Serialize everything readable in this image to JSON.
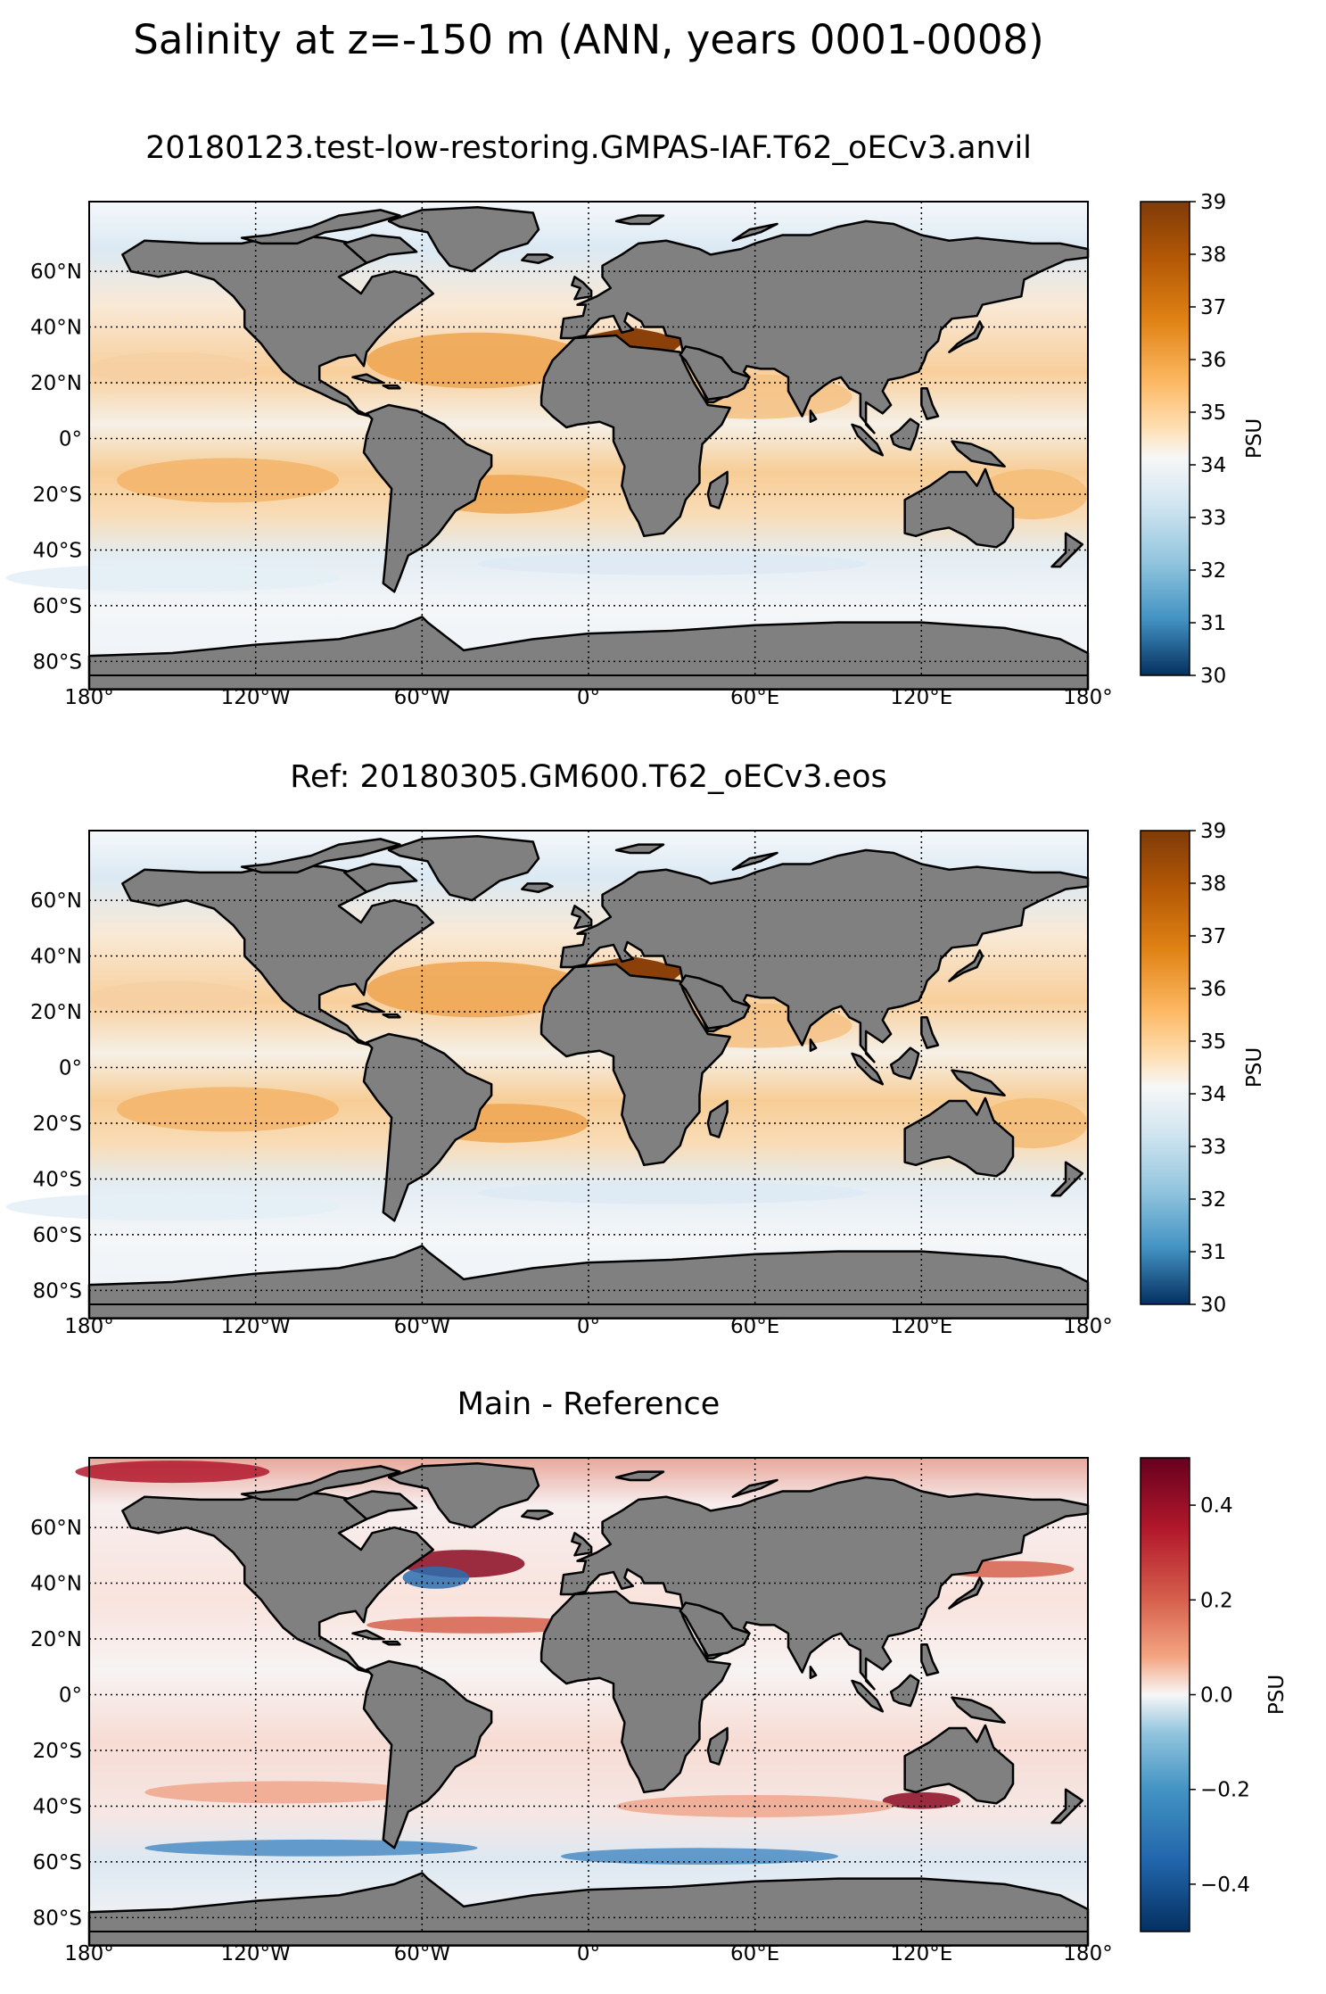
{
  "title": "Salinity at z=-150 m (ANN, years 0001-0008)",
  "lon_ticks": [
    "180°",
    "120°W",
    "60°W",
    "0°",
    "60°E",
    "120°E",
    "180°"
  ],
  "lat_ticks": [
    "60°N",
    "40°N",
    "20°N",
    "0°",
    "20°S",
    "40°S",
    "60°S",
    "80°S"
  ],
  "colors": {
    "land": "#808080",
    "coast": "#000000"
  },
  "chart_data": [
    {
      "type": "heatmap",
      "title": "20180123.test-low-restoring.GMPAS-IAF.T62_oECv3.anvil",
      "colorbar_label": "PSU",
      "colorbar_ticks": [
        "30",
        "31",
        "32",
        "33",
        "34",
        "35",
        "36",
        "37",
        "38",
        "39"
      ],
      "colorbar_range": [
        30,
        39
      ],
      "colormap": "blue-white-brown",
      "xlim": [
        -180,
        180
      ],
      "ylim": [
        -85,
        85
      ]
    },
    {
      "type": "heatmap",
      "title": "Ref: 20180305.GM600.T62_oECv3.eos",
      "colorbar_label": "PSU",
      "colorbar_ticks": [
        "30",
        "31",
        "32",
        "33",
        "34",
        "35",
        "36",
        "37",
        "38",
        "39"
      ],
      "colorbar_range": [
        30,
        39
      ],
      "colormap": "blue-white-brown",
      "xlim": [
        -180,
        180
      ],
      "ylim": [
        -85,
        85
      ]
    },
    {
      "type": "heatmap",
      "title": "Main - Reference",
      "colorbar_label": "PSU",
      "colorbar_ticks": [
        "0.4",
        "0.2",
        "0.0",
        "−0.2",
        "−0.4"
      ],
      "colorbar_tick_values": [
        0.4,
        0.2,
        0.0,
        -0.2,
        -0.4
      ],
      "colorbar_range": [
        -0.5,
        0.5
      ],
      "colormap": "blue-white-red",
      "xlim": [
        -180,
        180
      ],
      "ylim": [
        -85,
        85
      ]
    }
  ]
}
